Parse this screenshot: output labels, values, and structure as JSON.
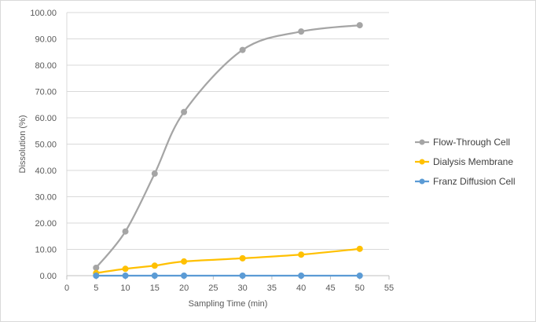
{
  "chart_data": {
    "type": "line",
    "smooth": true,
    "title": "",
    "xlabel": "Sampling Time (min)",
    "ylabel": "Dissolution (%)",
    "xlim": [
      0,
      55
    ],
    "ylim": [
      0,
      100
    ],
    "xticks": [
      0,
      5,
      10,
      15,
      20,
      25,
      30,
      35,
      40,
      45,
      50,
      55
    ],
    "yticks": [
      "0.00",
      "10.00",
      "20.00",
      "30.00",
      "40.00",
      "50.00",
      "60.00",
      "70.00",
      "80.00",
      "90.00",
      "100.00"
    ],
    "grid": "horizontal",
    "legend": "right",
    "x": [
      5,
      10,
      15,
      20,
      30,
      40,
      50
    ],
    "series": [
      {
        "name": "Flow-Through Cell",
        "color": "#a5a5a5",
        "values": [
          3.0,
          16.8,
          38.8,
          62.2,
          85.8,
          92.8,
          95.2
        ]
      },
      {
        "name": "Dialysis Membrane",
        "color": "#ffc000",
        "values": [
          1.0,
          2.6,
          3.8,
          5.4,
          6.6,
          8.0,
          10.2
        ]
      },
      {
        "name": "Franz Diffusion Cell",
        "color": "#5b9bd5",
        "values": [
          0.0,
          0.0,
          0.0,
          0.0,
          0.0,
          0.0,
          0.0
        ]
      }
    ]
  }
}
